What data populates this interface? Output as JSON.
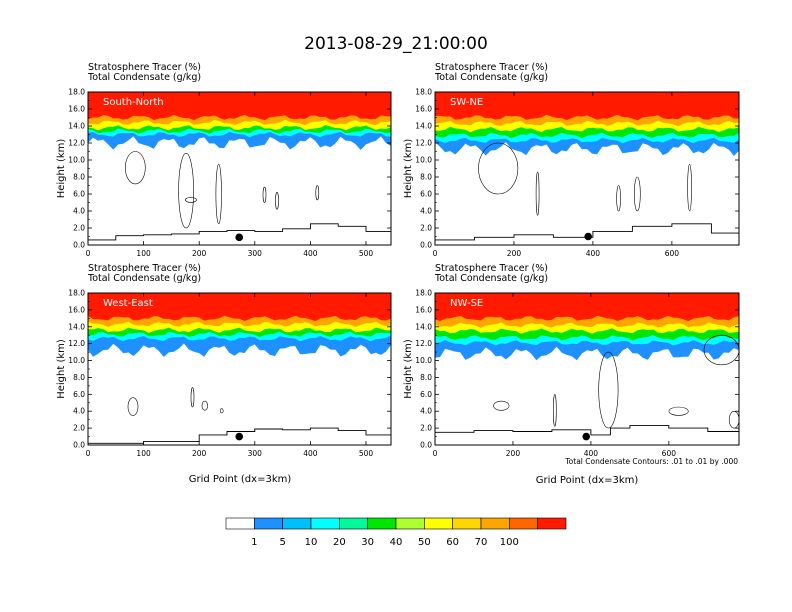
{
  "title": "2013-08-29_21:00:00",
  "field_label": "Stratosphere Tracer   (%)",
  "contour_label": "Total Condensate   (g/kg)",
  "ylabel": "Height (km)",
  "xlabel": "Grid Point (dx=3km)",
  "contour_note": "Total Condensate Contours: .01 to .01 by .000",
  "y_ticks": [
    "0.0",
    "2.0",
    "4.0",
    "6.0",
    "8.0",
    "10.0",
    "12.0",
    "14.0",
    "16.0",
    "18.0"
  ],
  "colorbar": {
    "levels": [
      "1",
      "5",
      "10",
      "20",
      "30",
      "40",
      "50",
      "60",
      "70",
      "100"
    ],
    "colors": [
      "#ffffff",
      "#1e90ff",
      "#00bfff",
      "#00ffff",
      "#00fa9a",
      "#00e600",
      "#adff2f",
      "#ffff00",
      "#ffd700",
      "#ffa500",
      "#ff6600",
      "#ff1a00"
    ]
  },
  "chart_data": [
    {
      "type": "heatmap",
      "panel": "South-North",
      "x_ticks": [
        "0",
        "100",
        "200",
        "300",
        "400",
        "500"
      ],
      "xlim": [
        0,
        545
      ],
      "ylim": [
        0,
        18
      ],
      "tracer_bands_km": {
        "blue_1pct_base": 12.0,
        "cyan_10pct_base": 13.0,
        "green_30pct_base": 13.4,
        "yellow_50pct_base": 13.8,
        "orange_70pct_base": 14.4,
        "red_100pct_base": 15.0
      },
      "terrain_km": [
        [
          0,
          0.6
        ],
        [
          50,
          1.1
        ],
        [
          100,
          1.2
        ],
        [
          150,
          1.3
        ],
        [
          200,
          1.6
        ],
        [
          250,
          1.7
        ],
        [
          300,
          1.6
        ],
        [
          350,
          1.9
        ],
        [
          400,
          2.5
        ],
        [
          450,
          2.2
        ],
        [
          500,
          1.6
        ],
        [
          545,
          1.8
        ]
      ],
      "marker": {
        "x": 272,
        "y_km": 0.9
      },
      "contour_ranges_km": [
        [
          67,
          103,
          7.2,
          11.0
        ],
        [
          163,
          190,
          2.0,
          10.8
        ],
        [
          175,
          195,
          5.0,
          5.6
        ],
        [
          230,
          240,
          2.5,
          9.5
        ],
        [
          315,
          320,
          5.0,
          6.8
        ],
        [
          338,
          342,
          4.2,
          6.2
        ],
        [
          410,
          415,
          5.3,
          7.0
        ]
      ]
    },
    {
      "type": "heatmap",
      "panel": "SW-NE",
      "x_ticks": [
        "0",
        "200",
        "400",
        "600"
      ],
      "xlim": [
        0,
        770
      ],
      "ylim": [
        0,
        18
      ],
      "tracer_bands_km": {
        "blue_1pct_base": 11.3,
        "cyan_10pct_base": 12.3,
        "green_30pct_base": 12.9,
        "yellow_50pct_base": 13.6,
        "orange_70pct_base": 14.3,
        "red_100pct_base": 15.0
      },
      "terrain_km": [
        [
          0,
          0.6
        ],
        [
          100,
          0.9
        ],
        [
          200,
          1.2
        ],
        [
          300,
          0.9
        ],
        [
          400,
          1.6
        ],
        [
          500,
          2.2
        ],
        [
          600,
          2.5
        ],
        [
          700,
          1.4
        ],
        [
          770,
          1.1
        ]
      ],
      "marker": {
        "x": 388,
        "y_km": 1.0
      },
      "contour_ranges_km": [
        [
          110,
          210,
          6.0,
          12.0
        ],
        [
          258,
          262,
          3.5,
          8.6
        ],
        [
          460,
          470,
          4.0,
          7.0
        ],
        [
          505,
          520,
          4.0,
          8.0
        ],
        [
          640,
          650,
          4.0,
          9.5
        ]
      ]
    },
    {
      "type": "heatmap",
      "panel": "West-East",
      "x_ticks": [
        "0",
        "100",
        "200",
        "300",
        "400",
        "500"
      ],
      "xlim": [
        0,
        545
      ],
      "ylim": [
        0,
        18
      ],
      "tracer_bands_km": {
        "blue_1pct_base": 11.2,
        "cyan_10pct_base": 12.6,
        "green_30pct_base": 13.1,
        "yellow_50pct_base": 13.6,
        "orange_70pct_base": 14.3,
        "red_100pct_base": 15.0
      },
      "terrain_km": [
        [
          0,
          0.2
        ],
        [
          100,
          0.4
        ],
        [
          200,
          1.2
        ],
        [
          250,
          1.6
        ],
        [
          300,
          1.9
        ],
        [
          350,
          1.8
        ],
        [
          400,
          2.0
        ],
        [
          450,
          1.7
        ],
        [
          500,
          1.2
        ],
        [
          545,
          1.2
        ]
      ],
      "marker": {
        "x": 272,
        "y_km": 1.0
      },
      "contour_ranges_km": [
        [
          72,
          90,
          3.5,
          5.6
        ],
        [
          186,
          190,
          4.5,
          6.8
        ],
        [
          205,
          215,
          4.1,
          5.2
        ],
        [
          238,
          243,
          3.8,
          4.3
        ]
      ]
    },
    {
      "type": "heatmap",
      "panel": "NW-SE",
      "x_ticks": [
        "0",
        "200",
        "400",
        "600"
      ],
      "xlim": [
        0,
        780
      ],
      "ylim": [
        0,
        18
      ],
      "tracer_bands_km": {
        "blue_1pct_base": 10.8,
        "cyan_10pct_base": 12.1,
        "green_30pct_base": 12.7,
        "yellow_50pct_base": 13.5,
        "orange_70pct_base": 14.2,
        "red_100pct_base": 15.0
      },
      "terrain_km": [
        [
          0,
          1.5
        ],
        [
          100,
          1.7
        ],
        [
          200,
          1.6
        ],
        [
          300,
          1.8
        ],
        [
          400,
          1.2
        ],
        [
          450,
          2.0
        ],
        [
          500,
          2.3
        ],
        [
          600,
          2.0
        ],
        [
          700,
          1.6
        ],
        [
          780,
          0.3
        ]
      ],
      "marker": {
        "x": 388,
        "y_km": 1.0
      },
      "contour_ranges_km": [
        [
          420,
          470,
          2.0,
          11.0
        ],
        [
          690,
          780,
          9.5,
          13.0
        ],
        [
          150,
          190,
          4.1,
          5.2
        ],
        [
          305,
          310,
          2.2,
          6.0
        ],
        [
          600,
          650,
          3.5,
          4.5
        ],
        [
          755,
          780,
          2.0,
          4.0
        ]
      ]
    }
  ]
}
